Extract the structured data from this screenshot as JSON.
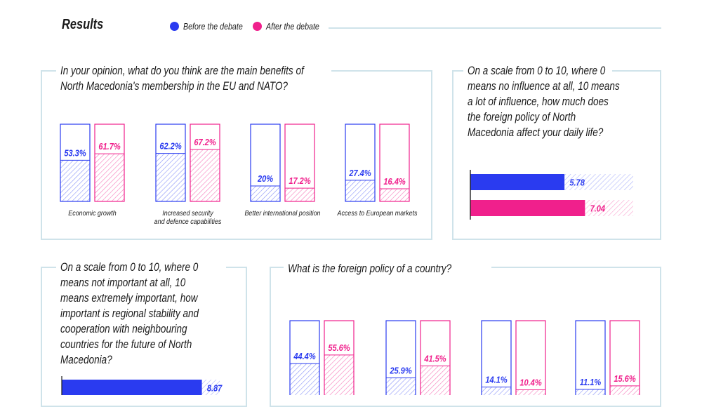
{
  "header": {
    "title": "Results",
    "legend": [
      {
        "label": "Before the debate",
        "color": "#2a3bf0"
      },
      {
        "label": "After the debate",
        "color": "#f0208c"
      }
    ]
  },
  "colors": {
    "before": "#2a3bf0",
    "after": "#f0208c",
    "panel_border": "#cfe3ea"
  },
  "q1": {
    "question": "In your opinion, what do you think are the main benefits of North Macedonia's membership in the EU and NATO?"
  },
  "q2": {
    "question": "On a scale from 0 to 10, where 0 means no influence at all, 10 means a lot of influence, how much does the foreign policy of North Macedonia affect your daily life?"
  },
  "q3": {
    "question": "On a scale from 0 to 10, where 0 means not important at all, 10 means extremely important, how important is regional stability and cooperation with neighbouring countries for the future of North Macedonia?"
  },
  "q4": {
    "question": "What is the foreign policy of a country?"
  },
  "chart_data": [
    {
      "type": "bar",
      "title": "In your opinion, what do you think are the main benefits of North Macedonia's membership in the EU and NATO?",
      "categories": [
        "Economic growth",
        "Increased security and defence capabilities",
        "Better international position",
        "Access to European markets"
      ],
      "category_lines": [
        [
          "Economic growth"
        ],
        [
          "Increased security",
          "and defence capabilities"
        ],
        [
          "Better international position"
        ],
        [
          "Access to European markets"
        ]
      ],
      "series": [
        {
          "name": "Before the debate",
          "values": [
            53.3,
            62.2,
            20,
            27.4
          ],
          "labels": [
            "53.3%",
            "62.2%",
            "20%",
            "27.4%"
          ]
        },
        {
          "name": "After the debate",
          "values": [
            61.7,
            67.2,
            17.2,
            16.4
          ],
          "labels": [
            "61.7%",
            "67.2%",
            "17.2%",
            "16.4%"
          ]
        }
      ],
      "ylim": [
        0,
        100
      ]
    },
    {
      "type": "bar",
      "orientation": "horizontal",
      "title": "On a scale from 0 to 10, where 0 means no influence at all, 10 means a lot of influence, how much does the foreign policy of North Macedonia affect your daily life?",
      "series": [
        {
          "name": "Before the debate",
          "values": [
            5.78
          ],
          "labels": [
            "5.78"
          ]
        },
        {
          "name": "After the debate",
          "values": [
            7.04
          ],
          "labels": [
            "7.04"
          ]
        }
      ],
      "xlim": [
        0,
        10
      ]
    },
    {
      "type": "bar",
      "orientation": "horizontal",
      "title": "On a scale from 0 to 10, where 0 means not important at all, 10 means extremely important, how important is regional stability and cooperation with neighbouring countries for the future of North Macedonia?",
      "series": [
        {
          "name": "Before the debate",
          "values": [
            8.87
          ],
          "labels": [
            "8.87"
          ]
        }
      ],
      "xlim": [
        0,
        10
      ]
    },
    {
      "type": "bar",
      "title": "What is the foreign policy of a country?",
      "categories": [
        "",
        "",
        "",
        ""
      ],
      "series": [
        {
          "name": "Before the debate",
          "values": [
            44.4,
            25.9,
            14.1,
            11.1
          ],
          "labels": [
            "44.4%",
            "25.9%",
            "14.1%",
            "11.1%"
          ]
        },
        {
          "name": "After the debate",
          "values": [
            55.6,
            41.5,
            10.4,
            15.6
          ],
          "labels": [
            "55.6%",
            "41.5%",
            "10.4%",
            "15.6%"
          ]
        }
      ],
      "ylim": [
        0,
        100
      ]
    }
  ]
}
